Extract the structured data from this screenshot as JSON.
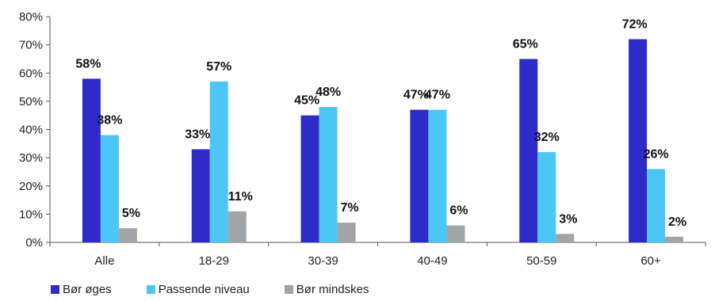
{
  "chart_data": {
    "type": "bar",
    "categories": [
      "Alle",
      "18-29",
      "30-39",
      "40-49",
      "50-59",
      "60+"
    ],
    "series": [
      {
        "name": "Bør øges",
        "values": [
          58,
          33,
          45,
          47,
          65,
          72
        ],
        "color": "#2E2BC9"
      },
      {
        "name": "Passende niveau",
        "values": [
          38,
          57,
          48,
          47,
          32,
          26
        ],
        "color": "#4CC6F5"
      },
      {
        "name": "Bør mindskes",
        "values": [
          5,
          11,
          7,
          6,
          3,
          2
        ],
        "color": "#A0A5A8"
      }
    ],
    "data_labels": [
      [
        "58%",
        "33%",
        "45%",
        "47%",
        "65%",
        "72%"
      ],
      [
        "38%",
        "57%",
        "48%",
        "47%",
        "32%",
        "26%"
      ],
      [
        "5%",
        "11%",
        "7%",
        "6%",
        "3%",
        "2%"
      ]
    ],
    "yticks": [
      0,
      10,
      20,
      30,
      40,
      50,
      60,
      70,
      80
    ],
    "ytick_labels": [
      "0%",
      "10%",
      "20%",
      "30%",
      "40%",
      "50%",
      "60%",
      "70%",
      "80%"
    ],
    "ylim": [
      0,
      80
    ],
    "grid": false,
    "legend_position": "bottom-left"
  }
}
